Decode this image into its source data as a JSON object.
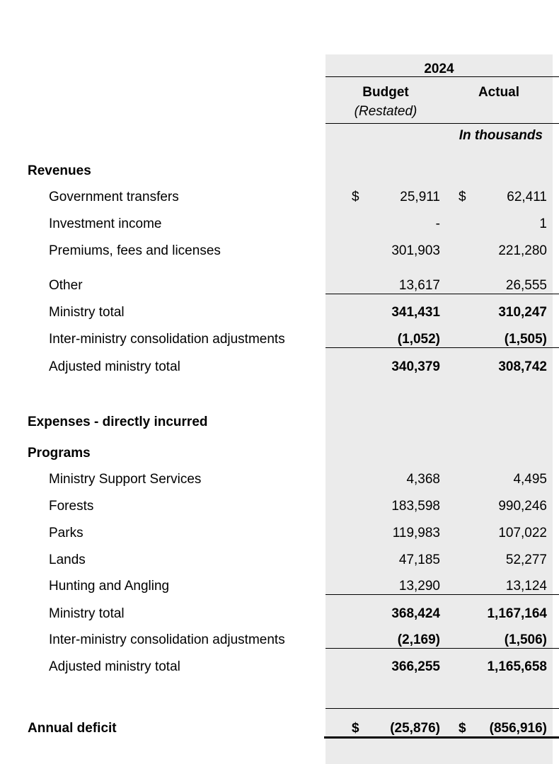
{
  "header": {
    "year": "2024",
    "budget_label": "Budget",
    "restated_label": "(Restated)",
    "actual_label": "Actual",
    "units_label": "In thousands"
  },
  "currency_symbol": "$",
  "revenues": {
    "heading": "Revenues",
    "rows": [
      {
        "label": "Government transfers",
        "budget": "25,911",
        "actual": "62,411"
      },
      {
        "label": "Investment income",
        "budget": "-",
        "actual": "1"
      },
      {
        "label": "Premiums, fees and licenses",
        "budget": "301,903",
        "actual": "221,280"
      },
      {
        "label": "Other",
        "budget": "13,617",
        "actual": "26,555"
      }
    ],
    "ministry_total": {
      "label": "Ministry total",
      "budget": "341,431",
      "actual": "310,247"
    },
    "adjustments": {
      "label": "Inter-ministry consolidation adjustments",
      "budget": "(1,052)",
      "actual": "(1,505)"
    },
    "adjusted_total": {
      "label": "Adjusted ministry total",
      "budget": "340,379",
      "actual": "308,742"
    }
  },
  "expenses": {
    "heading": "Expenses - directly incurred",
    "subheading": "Programs",
    "rows": [
      {
        "label": "Ministry Support Services",
        "budget": "4,368",
        "actual": "4,495"
      },
      {
        "label": "Forests",
        "budget": "183,598",
        "actual": "990,246"
      },
      {
        "label": "Parks",
        "budget": "119,983",
        "actual": "107,022"
      },
      {
        "label": "Lands",
        "budget": "47,185",
        "actual": "52,277"
      },
      {
        "label": "Hunting and Angling",
        "budget": "13,290",
        "actual": "13,124"
      }
    ],
    "ministry_total": {
      "label": "Ministry total",
      "budget": "368,424",
      "actual": "1,167,164"
    },
    "adjustments": {
      "label": "Inter-ministry consolidation adjustments",
      "budget": "(2,169)",
      "actual": "(1,506)"
    },
    "adjusted_total": {
      "label": "Adjusted ministry total",
      "budget": "366,255",
      "actual": "1,165,658"
    }
  },
  "annual_deficit": {
    "label": "Annual deficit",
    "budget": "(25,876)",
    "actual": "(856,916)"
  }
}
